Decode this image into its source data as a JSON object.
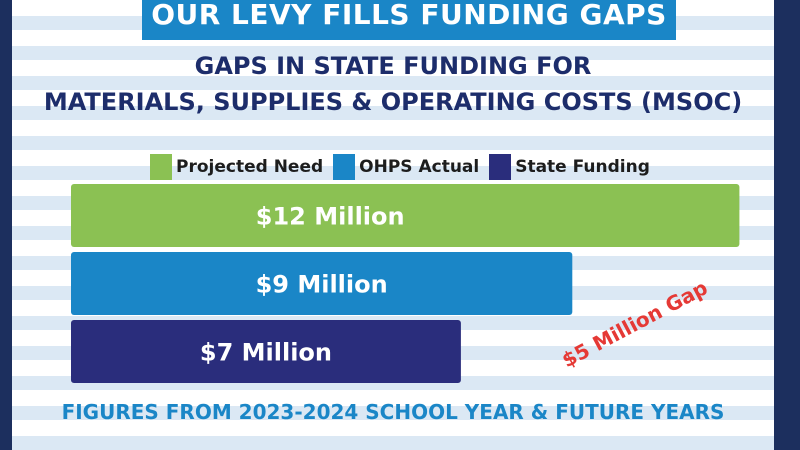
{
  "banner": {
    "text": "OUR LEVY FILLS FUNDING GAPS"
  },
  "subtitle": {
    "line1": "GAPS IN STATE FUNDING FOR",
    "line2": "MATERIALS, SUPPLIES & OPERATING COSTS (MSOC)"
  },
  "legend": [
    {
      "label": "Projected Need",
      "color": "#8bc153"
    },
    {
      "label": "OHPS Actual",
      "color": "#1a86c7"
    },
    {
      "label": "State Funding",
      "color": "#2a2d7c"
    }
  ],
  "chart_data": {
    "type": "bar",
    "orientation": "horizontal",
    "categories": [
      "Projected Need",
      "OHPS Actual",
      "State Funding"
    ],
    "values": [
      12,
      9,
      7
    ],
    "unit": "Million USD",
    "data_labels": [
      "$12 Million",
      "$9 Million",
      "$7 Million"
    ],
    "colors": [
      "#8bc153",
      "#1a86c7",
      "#2a2d7c"
    ],
    "annotation": {
      "text": "$5 Million Gap",
      "color": "#e53935"
    },
    "legend_position": "top",
    "grid": false
  },
  "footer": {
    "text": "FIGURES FROM 2023-2024 SCHOOL YEAR & FUTURE YEARS"
  }
}
